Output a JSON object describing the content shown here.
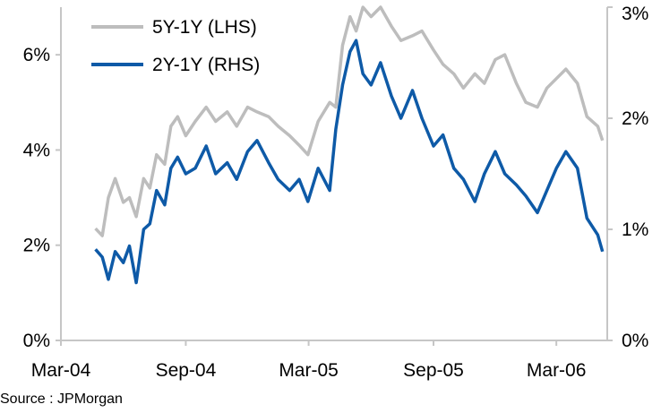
{
  "chart_data": {
    "type": "line",
    "title": "",
    "xlabel": "",
    "source": "Source : JPMorgan",
    "x_ticks": [
      "Mar-04",
      "Sep-04",
      "Mar-05",
      "Sep-05",
      "Mar-06"
    ],
    "x_range": [
      "2004-03-01",
      "2006-05-15"
    ],
    "y_left": {
      "ticks": [
        "0%",
        "2%",
        "4%",
        "6%"
      ],
      "range": [
        0,
        7
      ],
      "unit": "%"
    },
    "y_right": {
      "ticks": [
        "0%",
        "1%",
        "2%",
        "3%"
      ],
      "range": [
        0,
        3
      ],
      "unit": "%"
    },
    "grid": false,
    "legend_position": "top-left",
    "series": [
      {
        "name": "5Y-1Y (LHS)",
        "axis": "left",
        "color": "#bdbdbd",
        "points": [
          [
            "2004-04-21",
            2.35
          ],
          [
            "2004-05-01",
            2.2
          ],
          [
            "2004-05-10",
            3.0
          ],
          [
            "2004-05-20",
            3.4
          ],
          [
            "2004-06-01",
            2.9
          ],
          [
            "2004-06-10",
            3.0
          ],
          [
            "2004-06-20",
            2.6
          ],
          [
            "2004-07-01",
            3.4
          ],
          [
            "2004-07-10",
            3.2
          ],
          [
            "2004-07-20",
            3.9
          ],
          [
            "2004-08-01",
            3.7
          ],
          [
            "2004-08-10",
            4.5
          ],
          [
            "2004-08-20",
            4.7
          ],
          [
            "2004-09-01",
            4.3
          ],
          [
            "2004-09-15",
            4.6
          ],
          [
            "2004-10-01",
            4.9
          ],
          [
            "2004-10-15",
            4.6
          ],
          [
            "2004-11-01",
            4.8
          ],
          [
            "2004-11-15",
            4.5
          ],
          [
            "2004-12-01",
            4.9
          ],
          [
            "2004-12-15",
            4.8
          ],
          [
            "2005-01-01",
            4.7
          ],
          [
            "2005-01-15",
            4.5
          ],
          [
            "2005-02-01",
            4.3
          ],
          [
            "2005-02-15",
            4.1
          ],
          [
            "2005-02-28",
            3.9
          ],
          [
            "2005-03-15",
            4.6
          ],
          [
            "2005-04-01",
            5.0
          ],
          [
            "2005-04-10",
            4.9
          ],
          [
            "2005-04-20",
            6.2
          ],
          [
            "2005-05-01",
            6.8
          ],
          [
            "2005-05-10",
            6.5
          ],
          [
            "2005-05-20",
            7.0
          ],
          [
            "2005-06-01",
            6.8
          ],
          [
            "2005-06-15",
            7.0
          ],
          [
            "2005-07-01",
            6.6
          ],
          [
            "2005-07-15",
            6.3
          ],
          [
            "2005-08-01",
            6.4
          ],
          [
            "2005-08-15",
            6.5
          ],
          [
            "2005-09-01",
            6.1
          ],
          [
            "2005-09-15",
            5.8
          ],
          [
            "2005-10-01",
            5.6
          ],
          [
            "2005-10-15",
            5.3
          ],
          [
            "2005-11-01",
            5.6
          ],
          [
            "2005-11-15",
            5.4
          ],
          [
            "2005-12-01",
            5.9
          ],
          [
            "2005-12-15",
            6.0
          ],
          [
            "2006-01-01",
            5.4
          ],
          [
            "2006-01-15",
            5.0
          ],
          [
            "2006-02-01",
            4.9
          ],
          [
            "2006-02-15",
            5.3
          ],
          [
            "2006-03-01",
            5.5
          ],
          [
            "2006-03-15",
            5.7
          ],
          [
            "2006-04-01",
            5.4
          ],
          [
            "2006-04-15",
            4.7
          ],
          [
            "2006-05-01",
            4.5
          ],
          [
            "2006-05-08",
            4.2
          ]
        ]
      },
      {
        "name": "2Y-1Y (RHS)",
        "axis": "right",
        "color": "#0e5aa7",
        "points": [
          [
            "2004-04-21",
            0.82
          ],
          [
            "2004-05-01",
            0.75
          ],
          [
            "2004-05-10",
            0.55
          ],
          [
            "2004-05-20",
            0.8
          ],
          [
            "2004-06-01",
            0.7
          ],
          [
            "2004-06-10",
            0.85
          ],
          [
            "2004-06-20",
            0.52
          ],
          [
            "2004-07-01",
            1.0
          ],
          [
            "2004-07-10",
            1.05
          ],
          [
            "2004-07-20",
            1.35
          ],
          [
            "2004-08-01",
            1.22
          ],
          [
            "2004-08-10",
            1.55
          ],
          [
            "2004-08-20",
            1.65
          ],
          [
            "2004-09-01",
            1.5
          ],
          [
            "2004-09-15",
            1.55
          ],
          [
            "2004-10-01",
            1.75
          ],
          [
            "2004-10-15",
            1.5
          ],
          [
            "2004-11-01",
            1.6
          ],
          [
            "2004-11-15",
            1.45
          ],
          [
            "2004-12-01",
            1.7
          ],
          [
            "2004-12-15",
            1.8
          ],
          [
            "2005-01-01",
            1.6
          ],
          [
            "2005-01-15",
            1.45
          ],
          [
            "2005-02-01",
            1.35
          ],
          [
            "2005-02-15",
            1.45
          ],
          [
            "2005-02-28",
            1.25
          ],
          [
            "2005-03-15",
            1.55
          ],
          [
            "2005-04-01",
            1.35
          ],
          [
            "2005-04-10",
            1.9
          ],
          [
            "2005-04-20",
            2.3
          ],
          [
            "2005-05-01",
            2.6
          ],
          [
            "2005-05-10",
            2.7
          ],
          [
            "2005-05-20",
            2.4
          ],
          [
            "2005-06-01",
            2.3
          ],
          [
            "2005-06-15",
            2.5
          ],
          [
            "2005-07-01",
            2.2
          ],
          [
            "2005-07-15",
            2.0
          ],
          [
            "2005-08-01",
            2.25
          ],
          [
            "2005-08-15",
            2.0
          ],
          [
            "2005-09-01",
            1.75
          ],
          [
            "2005-09-15",
            1.85
          ],
          [
            "2005-10-01",
            1.55
          ],
          [
            "2005-10-15",
            1.45
          ],
          [
            "2005-11-01",
            1.25
          ],
          [
            "2005-11-15",
            1.5
          ],
          [
            "2005-12-01",
            1.7
          ],
          [
            "2005-12-15",
            1.5
          ],
          [
            "2006-01-01",
            1.4
          ],
          [
            "2006-01-15",
            1.3
          ],
          [
            "2006-02-01",
            1.15
          ],
          [
            "2006-02-15",
            1.35
          ],
          [
            "2006-03-01",
            1.55
          ],
          [
            "2006-03-15",
            1.7
          ],
          [
            "2006-04-01",
            1.55
          ],
          [
            "2006-04-15",
            1.1
          ],
          [
            "2006-05-01",
            0.95
          ],
          [
            "2006-05-08",
            0.8
          ]
        ]
      }
    ]
  }
}
